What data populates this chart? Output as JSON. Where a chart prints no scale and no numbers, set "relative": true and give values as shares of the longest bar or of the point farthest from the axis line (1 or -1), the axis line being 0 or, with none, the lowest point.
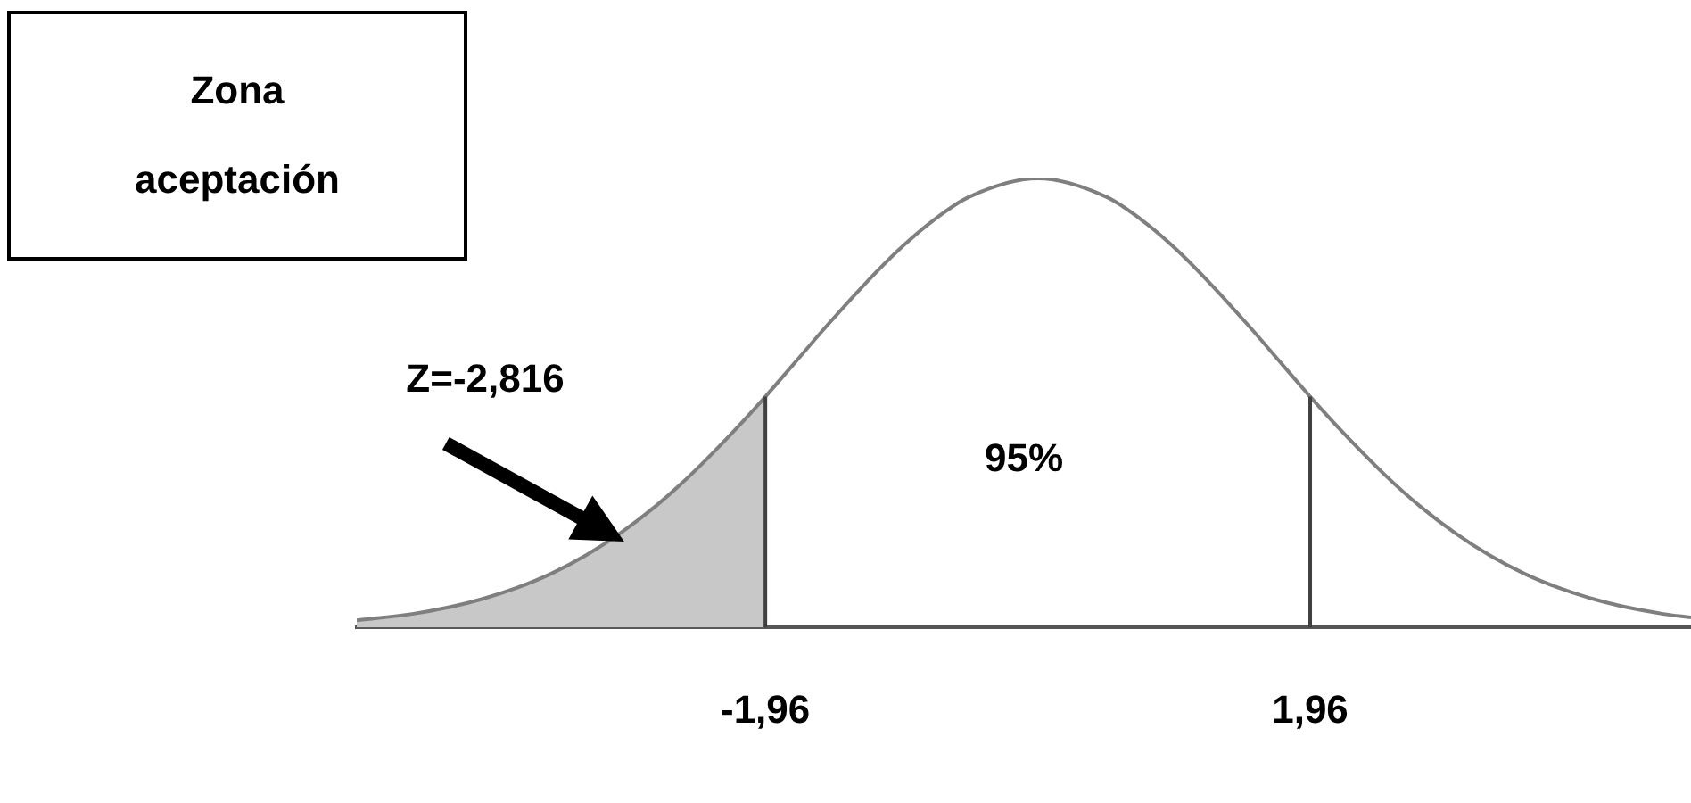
{
  "chart_data": {
    "type": "line",
    "relative": true,
    "grid": false,
    "legend": false,
    "marker": "none",
    "line_style": "solid",
    "xlim": [
      -4.9,
      4.7
    ],
    "xticks": [
      {
        "value": -1.96,
        "label": "-1,96"
      },
      {
        "value": 1.96,
        "label": "1,96"
      }
    ],
    "series": [
      {
        "type": "area",
        "color": "#c8c8c8",
        "x": [
          -4.9,
          -4.5,
          -4.25,
          -4.0,
          -3.75,
          -3.5,
          -3.25,
          -3.0,
          -2.75,
          -2.5,
          -2.2,
          -1.96
        ],
        "values": [
          0.016,
          0.03,
          0.044,
          0.063,
          0.088,
          0.12,
          0.161,
          0.211,
          0.27,
          0.339,
          0.433,
          0.514
        ]
      },
      {
        "color": "#7f7f7f",
        "x": [
          -4.9,
          -4.5,
          -4.25,
          -4.0,
          -3.75,
          -3.5,
          -3.25,
          -3.0,
          -2.75,
          -2.5,
          -2.2,
          -1.96,
          -1.75,
          -1.5,
          -1.25,
          -1.0,
          -0.75,
          -0.5,
          0,
          0.5,
          0.75,
          1.0,
          1.25,
          1.5,
          1.75,
          1.96,
          2.2,
          2.5,
          2.75,
          3.0,
          3.25,
          3.5,
          3.75,
          4.0,
          4.25,
          4.5,
          4.7
        ],
        "values": [
          0.016,
          0.03,
          0.044,
          0.063,
          0.088,
          0.12,
          0.161,
          0.211,
          0.27,
          0.339,
          0.433,
          0.514,
          0.589,
          0.678,
          0.763,
          0.841,
          0.907,
          0.958,
          1,
          0.958,
          0.907,
          0.841,
          0.763,
          0.678,
          0.589,
          0.514,
          0.433,
          0.339,
          0.27,
          0.211,
          0.161,
          0.12,
          0.088,
          0.063,
          0.044,
          0.03,
          0.022
        ]
      }
    ],
    "ref_lines": [
      {
        "axis": "x",
        "value": -1.96,
        "color": "#404040"
      },
      {
        "axis": "x",
        "value": 1.96,
        "color": "#404040"
      }
    ],
    "annotations": [
      "Zona aceptación",
      "Z=-2,816",
      "95%"
    ]
  }
}
